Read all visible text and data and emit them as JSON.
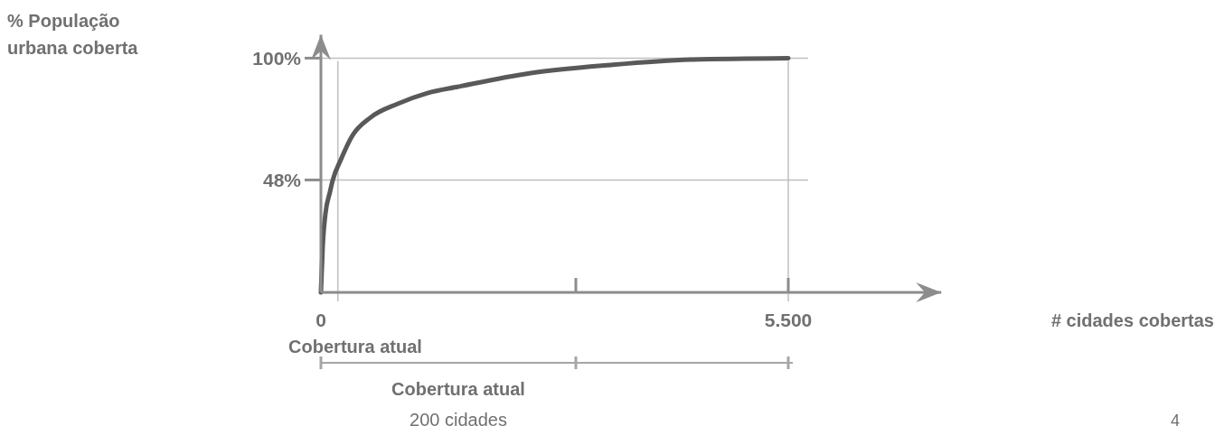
{
  "chart_data": {
    "type": "line",
    "x": [
      0,
      21,
      53,
      106,
      140,
      234,
      372,
      585,
      904,
      1255,
      1617,
      2468,
      3415,
      4372,
      5500
    ],
    "series": [
      {
        "color": "#595959",
        "values": [
          0,
          19.6,
          33.5,
          42.8,
          48,
          56.6,
          67,
          74.7,
          80.5,
          85.1,
          87.8,
          93.6,
          97.1,
          99.4,
          100
        ]
      }
    ],
    "xlim": [
      0,
      7300
    ],
    "xticks": [
      0,
      {
        "value": 3000,
        "label": null
      },
      {
        "value": 5500,
        "label": "5.500"
      }
    ],
    "ylim": [
      0,
      110
    ],
    "yticks": [
      {
        "value": 48,
        "label": "48%"
      },
      {
        "value": 100,
        "label": "100%"
      }
    ],
    "grid": "y",
    "marker": "none",
    "line_style": "solid",
    "ref_lines": [
      {
        "axis": "x",
        "value": 200,
        "color": "#bfbfbf"
      },
      {
        "axis": "x",
        "value": 5500,
        "color": "#bfbfbf"
      }
    ],
    "annotations": [
      "Cobertura atual",
      "Cobertura atual",
      "200 cidades",
      "4",
      "% População urbana coberta",
      "# cidades cobertas"
    ]
  }
}
